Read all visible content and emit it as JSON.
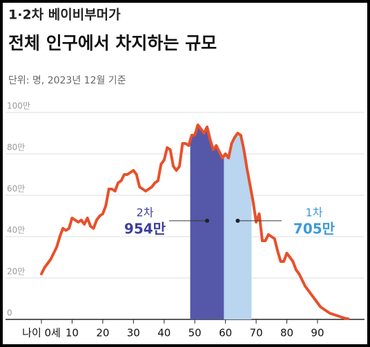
{
  "chart_data": {
    "type": "line",
    "title": "1·2차 베이비부머가",
    "subtitle": "전체 인구에서 차지하는 규모",
    "note": "단위: 명, 2023년 12월 기준",
    "x": [
      0,
      1,
      2,
      3,
      4,
      5,
      6,
      7,
      8,
      9,
      10,
      11,
      12,
      13,
      14,
      15,
      16,
      17,
      18,
      19,
      20,
      21,
      22,
      23,
      24,
      25,
      26,
      27,
      28,
      29,
      30,
      31,
      32,
      33,
      34,
      35,
      36,
      37,
      38,
      39,
      40,
      41,
      42,
      43,
      44,
      45,
      46,
      47,
      48,
      49,
      50,
      51,
      52,
      53,
      54,
      55,
      56,
      57,
      58,
      59,
      60,
      61,
      62,
      63,
      64,
      65,
      66,
      67,
      68,
      69,
      70,
      71,
      72,
      73,
      74,
      75,
      76,
      77,
      78,
      79,
      80,
      81,
      82,
      83,
      84,
      85,
      86,
      87,
      88,
      89,
      90,
      91,
      92,
      93,
      94,
      95,
      96,
      97,
      98,
      99,
      100
    ],
    "series": [
      {
        "color": "#e8502a",
        "values": [
          22,
          25,
          27,
          29,
          32,
          35,
          40,
          44,
          43,
          44,
          49,
          48,
          47,
          48,
          46,
          49,
          45,
          44,
          48,
          50,
          51,
          55,
          63,
          63,
          62,
          66,
          67,
          70,
          70,
          71,
          72,
          70,
          64,
          63,
          62,
          63,
          64,
          66,
          67,
          75,
          77,
          83,
          82,
          74,
          72,
          74,
          85,
          85,
          84,
          89,
          89,
          94,
          92,
          90,
          93,
          87,
          82,
          84,
          81,
          78,
          80,
          78,
          85,
          88,
          90,
          89,
          82,
          73,
          65,
          57,
          47,
          51,
          38,
          38,
          41,
          40,
          39,
          33,
          28,
          28,
          32,
          30,
          28,
          24,
          22,
          19,
          16,
          14,
          12,
          10,
          8,
          6,
          5,
          4,
          3,
          2.5,
          2,
          1.5,
          1,
          0.5,
          0.3
        ]
      }
    ],
    "bands": [
      {
        "label": "2차",
        "value": 954,
        "value_label": "954만",
        "range": [
          49,
          59
        ],
        "color": "#5558a8",
        "text_color": "#3d3f9b"
      },
      {
        "label": "1차",
        "value": 705,
        "value_label": "705만",
        "range": [
          60,
          68
        ],
        "color": "#b9d5f0",
        "text_color": "#3c9ad8"
      }
    ],
    "xlim": [
      -3,
      101
    ],
    "xticks": [
      {
        "value": 0,
        "label": "나이 0세"
      },
      10,
      20,
      30,
      40,
      50,
      60,
      70,
      80,
      90
    ],
    "ylim": [
      0,
      101
    ],
    "yticks": [
      0,
      {
        "value": 20,
        "label": "20만"
      },
      {
        "value": 40,
        "label": "40만"
      },
      {
        "value": 60,
        "label": "60만"
      },
      {
        "value": 80,
        "label": "80만"
      },
      {
        "value": 100,
        "label": "100만"
      }
    ],
    "grid": true
  }
}
